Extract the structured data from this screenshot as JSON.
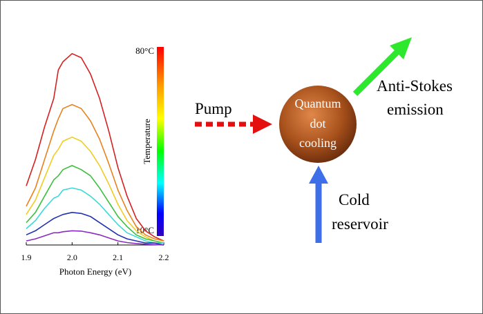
{
  "chart_data": {
    "type": "line",
    "x_label": "Photon Energy (eV)",
    "x": [
      1.9,
      1.92,
      1.94,
      1.96,
      1.97,
      1.98,
      2.0,
      2.02,
      2.04,
      2.06,
      2.08,
      2.1,
      2.12,
      2.14,
      2.16,
      2.18,
      2.2
    ],
    "series": [
      {
        "color": "#d42020",
        "values": [
          0.29,
          0.42,
          0.58,
          0.72,
          0.86,
          0.9,
          0.94,
          0.92,
          0.84,
          0.72,
          0.56,
          0.38,
          0.24,
          0.13,
          0.07,
          0.04,
          0.02
        ]
      },
      {
        "color": "#e8801c",
        "values": [
          0.19,
          0.28,
          0.42,
          0.56,
          0.62,
          0.67,
          0.69,
          0.67,
          0.61,
          0.52,
          0.4,
          0.27,
          0.17,
          0.09,
          0.05,
          0.03,
          0.02
        ]
      },
      {
        "color": "#f0cc20",
        "values": [
          0.15,
          0.22,
          0.33,
          0.44,
          0.47,
          0.51,
          0.53,
          0.51,
          0.46,
          0.39,
          0.3,
          0.2,
          0.12,
          0.07,
          0.04,
          0.02,
          0.01
        ]
      },
      {
        "color": "#3cbf3c",
        "values": [
          0.11,
          0.16,
          0.24,
          0.32,
          0.34,
          0.37,
          0.39,
          0.37,
          0.34,
          0.28,
          0.21,
          0.14,
          0.09,
          0.05,
          0.03,
          0.02,
          0.01
        ]
      },
      {
        "color": "#3cd8d8",
        "values": [
          0.08,
          0.12,
          0.18,
          0.23,
          0.24,
          0.27,
          0.28,
          0.27,
          0.24,
          0.2,
          0.15,
          0.1,
          0.06,
          0.04,
          0.02,
          0.01,
          0.01
        ]
      },
      {
        "color": "#2030b0",
        "values": [
          0.05,
          0.07,
          0.1,
          0.13,
          0.14,
          0.15,
          0.16,
          0.155,
          0.14,
          0.11,
          0.08,
          0.05,
          0.03,
          0.02,
          0.01,
          0.01,
          0
        ]
      },
      {
        "color": "#8a2ac0",
        "values": [
          0.02,
          0.03,
          0.045,
          0.06,
          0.06,
          0.065,
          0.07,
          0.068,
          0.06,
          0.05,
          0.035,
          0.02,
          0.012,
          0.007,
          0.004,
          0.002,
          0
        ]
      }
    ],
    "xlim": [
      1.9,
      2.2
    ],
    "xticks": [
      1.9,
      {
        "value": 2.0,
        "label": "2.0"
      },
      2.1,
      2.2
    ],
    "ylim": [
      0,
      1
    ],
    "colorbar": {
      "label": "Temperature",
      "max_label": "80°C",
      "min_label": "10°C"
    }
  },
  "diagram": {
    "pump_label": "Pump",
    "center_label": [
      "Quantum",
      "dot",
      "cooling"
    ],
    "emission_label": [
      "Anti-Stokes",
      "emission"
    ],
    "reservoir_label": [
      "Cold",
      "reservoir"
    ]
  }
}
